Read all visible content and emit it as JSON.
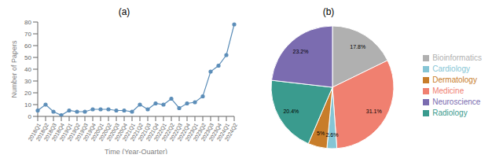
{
  "chart_data": [
    {
      "type": "line",
      "title": "(a)",
      "x_label": "Time (Year-Quarter)",
      "y_label": "Number of Papers",
      "categories": [
        "2018Q1",
        "2018Q2",
        "2018Q3",
        "2018Q4",
        "2019Q1",
        "2019Q2",
        "2019Q3",
        "2019Q4",
        "2020Q1",
        "2020Q2",
        "2020Q3",
        "2020Q4",
        "2021Q1",
        "2021Q2",
        "2021Q3",
        "2021Q4",
        "2022Q1",
        "2022Q2",
        "2022Q3",
        "2022Q4",
        "2023Q1",
        "2023Q2",
        "2023Q3",
        "2023Q4",
        "2024Q1",
        "2024Q2"
      ],
      "values": [
        5,
        10,
        4,
        1,
        5,
        4,
        4,
        6,
        6,
        6,
        5,
        5,
        4,
        10,
        6,
        11,
        10,
        15,
        7,
        11,
        12,
        17,
        38,
        43,
        52,
        78
      ],
      "color": "#5b8db8",
      "marker": "circle",
      "ylim": [
        0,
        80
      ],
      "yticks": [
        0,
        10,
        20,
        30,
        40,
        50,
        60,
        70,
        80
      ],
      "grid": false
    },
    {
      "type": "pie",
      "title": "(b)",
      "categories": [
        "Bioinformatics",
        "Medicine",
        "Cardiology",
        "Dermatology",
        "Radiology",
        "Neuroscience"
      ],
      "values": [
        17.8,
        31.1,
        2.6,
        5.0,
        20.4,
        23.2
      ],
      "value_labels": [
        "17.8%",
        "31.1%",
        "2.6%",
        "5%",
        "20.4%",
        "23.2%"
      ],
      "colors": [
        "#b0b0b0",
        "#f08070",
        "#85c5d5",
        "#c87d2a",
        "#3a9b8e",
        "#7b6cb0"
      ],
      "data_labels": true,
      "legend": "right"
    }
  ]
}
